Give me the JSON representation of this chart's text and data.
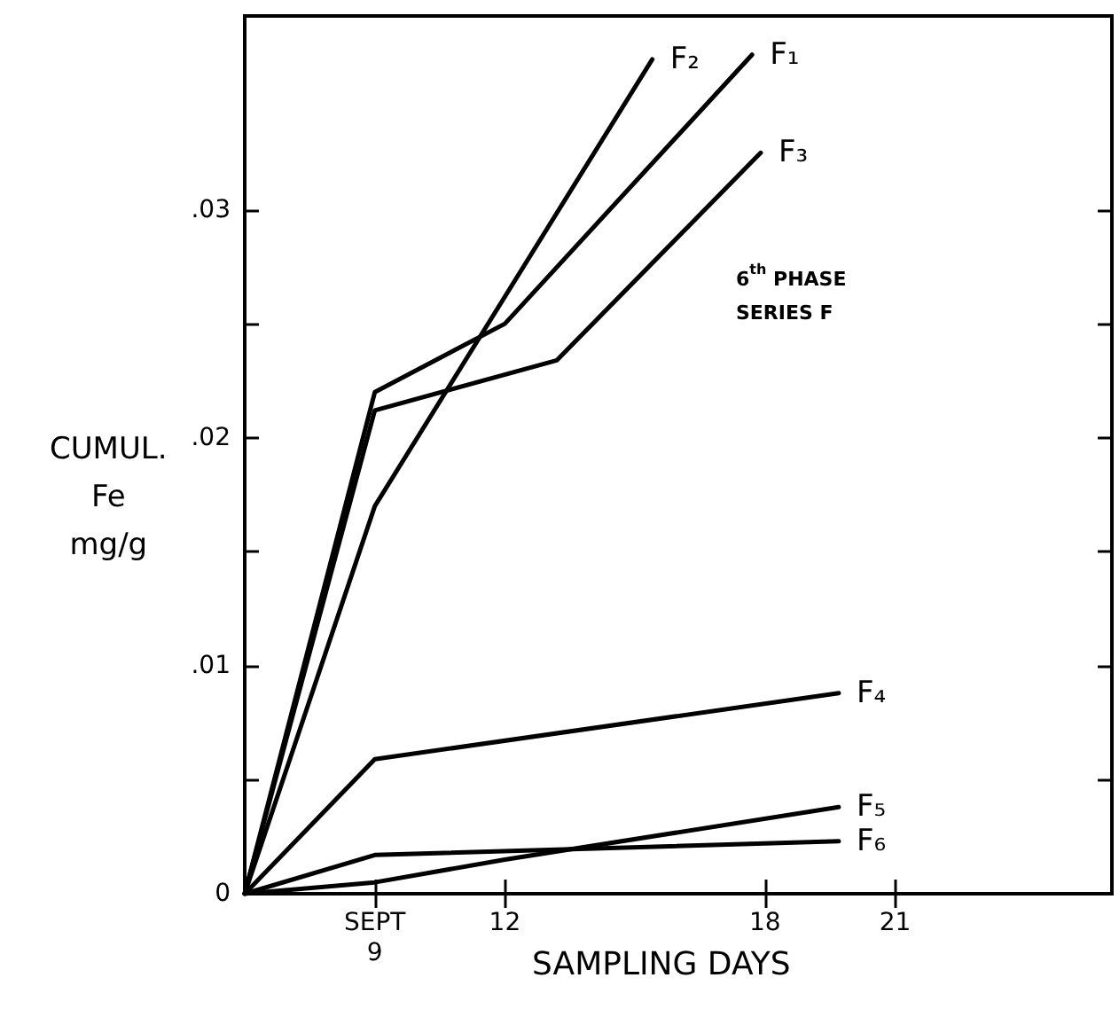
{
  "chart_data": {
    "type": "line",
    "xlabel": "SAMPLING DAYS",
    "ylabel": "CUMUL.\nFe\nmg/g",
    "annotations": [
      "6$^{th}$ PHASE\nSERIES F"
    ],
    "xlim": [
      6,
      26
    ],
    "xticks": [
      {
        "value": 9,
        "label": "SEPT\n9"
      },
      12,
      18,
      21
    ],
    "ylim": [
      0,
      0.0385
    ],
    "yticks": [
      {
        "value": 0,
        "label": "0"
      },
      {
        "value": 0.005,
        "label": null
      },
      {
        "value": 0.01,
        "label": ".01"
      },
      {
        "value": 0.015,
        "label": null
      },
      {
        "value": 0.02,
        "label": ".02"
      },
      {
        "value": 0.025,
        "label": null
      },
      {
        "value": 0.03,
        "label": ".03"
      }
    ],
    "grid": false,
    "legend": false,
    "marker": "none",
    "line_style": "solid",
    "series": [
      {
        "name": "F₁",
        "color": "#000000",
        "x": [
          6,
          9,
          12,
          17.7
        ],
        "values": [
          0,
          0.022,
          0.025,
          0.0368
        ]
      },
      {
        "name": "F₂",
        "color": "#000000",
        "x": [
          6,
          9,
          15.4
        ],
        "values": [
          0,
          0.017,
          0.0366
        ]
      },
      {
        "name": "F₃",
        "color": "#000000",
        "x": [
          6,
          9,
          13.2,
          17.9
        ],
        "values": [
          0,
          0.0212,
          0.0234,
          0.0325
        ]
      },
      {
        "name": "F₄",
        "color": "#000000",
        "x": [
          6,
          9,
          19.7
        ],
        "values": [
          0,
          0.0059,
          0.0088
        ]
      },
      {
        "name": "F₅",
        "color": "#000000",
        "x": [
          6,
          9,
          12,
          19.7
        ],
        "values": [
          0,
          0.0005,
          0.0015,
          0.0038
        ]
      },
      {
        "name": "F₆",
        "color": "#000000",
        "x": [
          6,
          9,
          19.7
        ],
        "values": [
          0,
          0.0017,
          0.0023
        ]
      }
    ]
  }
}
